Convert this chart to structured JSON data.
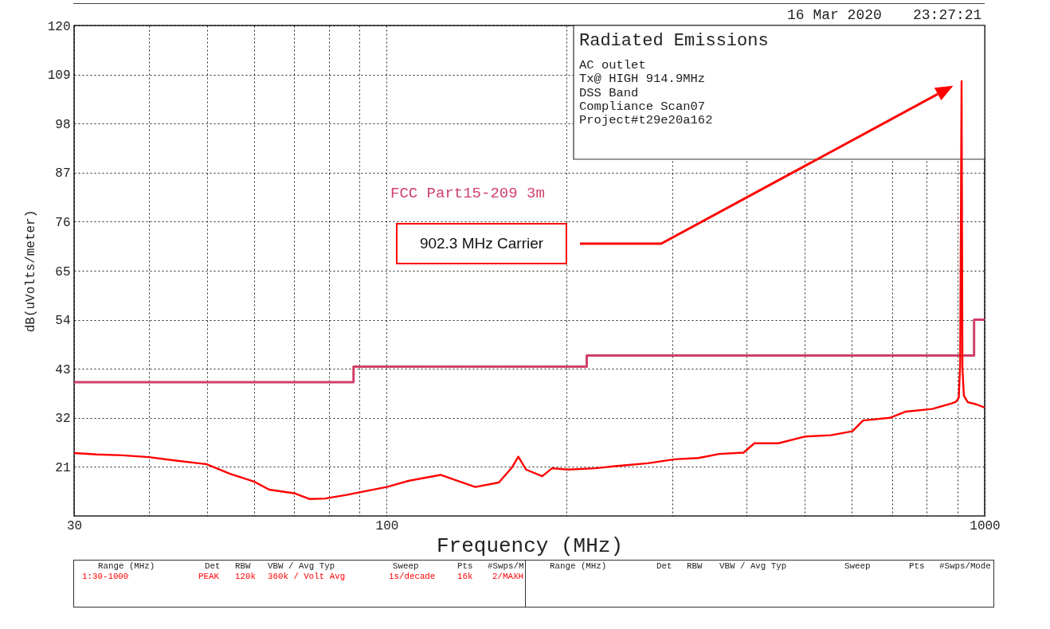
{
  "chart_data": {
    "type": "line",
    "title": "Radiated Emissions",
    "xlabel": "Frequency (MHz)",
    "ylabel": "dB(uVolts/meter)",
    "log": "x",
    "xlim": [
      30,
      1000
    ],
    "xticks": [
      30,
      {
        "value": 40,
        "label": null
      },
      {
        "value": 50,
        "label": null
      },
      {
        "value": 60,
        "label": null
      },
      {
        "value": 70,
        "label": null
      },
      {
        "value": 80,
        "label": null
      },
      {
        "value": 90,
        "label": null
      },
      100,
      {
        "value": 200,
        "label": null
      },
      {
        "value": 300,
        "label": null
      },
      {
        "value": 400,
        "label": null
      },
      {
        "value": 500,
        "label": null
      },
      {
        "value": 600,
        "label": null
      },
      {
        "value": 700,
        "label": null
      },
      {
        "value": 800,
        "label": null
      },
      {
        "value": 900,
        "label": null
      },
      1000
    ],
    "ylim": [
      10,
      120
    ],
    "yticks": [
      21,
      32,
      43,
      54,
      65,
      76,
      87,
      98,
      109,
      120
    ],
    "grid": true,
    "series": [
      {
        "name": "FCC Part15-209 3m",
        "type": "step",
        "color": "#d0406a",
        "x": [
          30,
          88,
          216,
          960,
          1000
        ],
        "values": [
          40,
          43.5,
          46,
          54,
          54
        ]
      },
      {
        "color": "#ff0000",
        "x": [
          30,
          32.7,
          36.2,
          40,
          44.4,
          50,
          54.6,
          60,
          63.6,
          70,
          74.2,
          78.9,
          85.6,
          90,
          100,
          109,
          123,
          140.6,
          154,
          162,
          166,
          171,
          182,
          189,
          201,
          223,
          247,
          273,
          303,
          332,
          360,
          395,
          412,
          452,
          500,
          553,
          601,
          626,
          694,
          738,
          817,
          879,
          895,
          905,
          910,
          914.9,
          918,
          923,
          937,
          970,
          1000
        ],
        "values": [
          24.1,
          23.8,
          23.6,
          23.2,
          22.4,
          21.6,
          19.5,
          17.7,
          15.9,
          15.1,
          13.8,
          13.9,
          14.7,
          15.3,
          16.5,
          17.9,
          19.2,
          16.5,
          17.5,
          20.9,
          23.3,
          20.4,
          18.9,
          20.7,
          20.4,
          20.7,
          21.3,
          21.8,
          22.7,
          23.0,
          23.9,
          24.2,
          26.3,
          26.3,
          27.8,
          28.1,
          29.0,
          31.4,
          32.0,
          33.4,
          34.0,
          35.2,
          35.6,
          36.5,
          44,
          107.5,
          43,
          37,
          35.5,
          35.0,
          34.3
        ]
      }
    ],
    "annotations": [
      "16 Mar 2020",
      "23:27:21",
      "AC outlet",
      "Tx@ HIGH 914.9MHz",
      "DSS Band",
      "Compliance Scan07",
      "Project#t29e20a162",
      "902.3 MHz Carrier",
      "Range (MHz)",
      "Det",
      "RBW",
      "VBW / Avg Typ",
      "Sweep",
      "Pts",
      "#Swps/M",
      "1:30-1000",
      "PEAK",
      "120k",
      "360k / Volt Avg",
      "1s/decade",
      "16k",
      "2/MAXH",
      "Range (MHz)",
      "Det",
      "RBW",
      "VBW / Avg Typ",
      "Sweep",
      "Pts",
      "#Swps/Mode"
    ]
  }
}
